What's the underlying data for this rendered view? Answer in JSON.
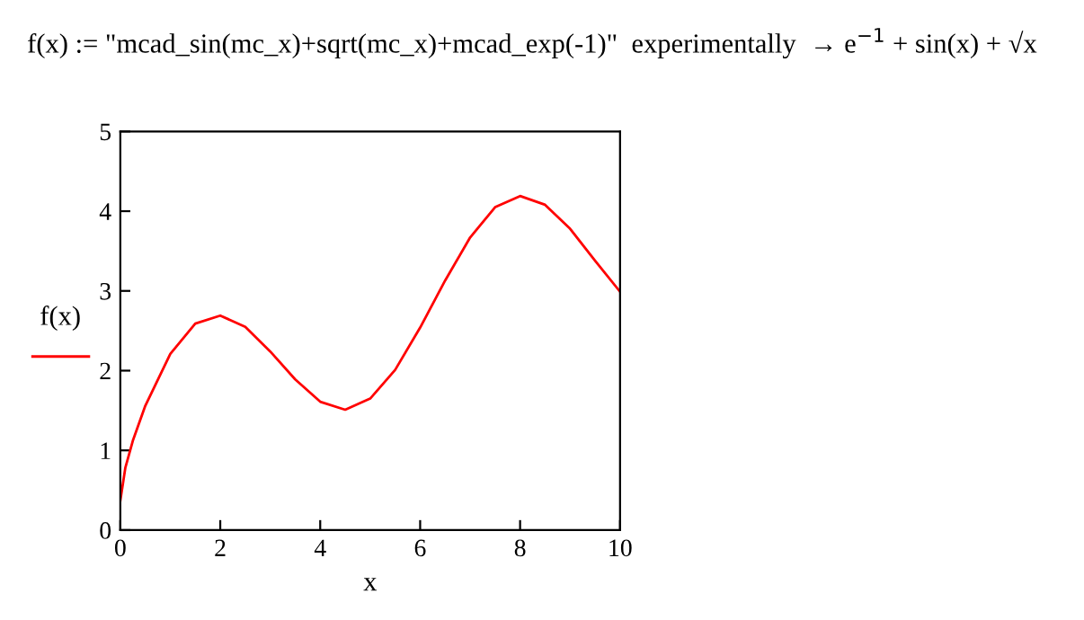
{
  "chart_data": {
    "type": "line",
    "title": "f(x) := \"mcad_sin(mc_x)+sqrt(mc_x)+mcad_exp(-1)\"  experimentally  → e$^{−1}$ + sin(x) + √x",
    "xlabel": "x",
    "ylabel": "f(x)",
    "series": [
      {
        "color": "#ff0000",
        "x": [
          0,
          0.1,
          0.25,
          0.5,
          1,
          1.5,
          2,
          2.5,
          3,
          3.5,
          4,
          4.5,
          5,
          5.5,
          6,
          6.5,
          7,
          7.5,
          8,
          8.5,
          9,
          9.5,
          10
        ],
        "values": [
          0.37,
          0.78,
          1.12,
          1.56,
          2.21,
          2.59,
          2.69,
          2.55,
          2.24,
          1.89,
          1.61,
          1.51,
          1.65,
          2.01,
          2.54,
          3.13,
          3.67,
          4.05,
          4.19,
          4.08,
          3.78,
          3.38,
          2.99
        ]
      }
    ],
    "xlim": [
      0,
      10
    ],
    "xticks": [
      0,
      2,
      4,
      6,
      8,
      10
    ],
    "ylim": [
      0,
      5
    ],
    "yticks": [
      0,
      1,
      2,
      3,
      4,
      5
    ],
    "grid": false,
    "legend": false,
    "marker": "none",
    "line_style": "solid"
  }
}
